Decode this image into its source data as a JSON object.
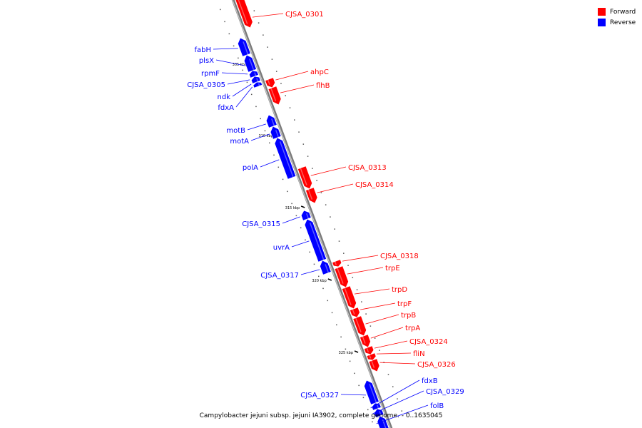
{
  "legend": [
    {
      "label": "Forward",
      "color": "#ff0000"
    },
    {
      "label": "Reverse",
      "color": "#0000ff"
    }
  ],
  "caption": "Campylobacter jejuni subsp. jejuni IA3902, complete genome. - 0..1635045",
  "colors": {
    "forward": "#ff0000",
    "reverse": "#0000ff",
    "backbone": "#999999"
  },
  "scale_labels": [
    "305 kbp",
    "310 kbp",
    "315 kbp",
    "320 kbp",
    "325 kbp"
  ],
  "genes": [
    {
      "name": "CJSA_0301",
      "strand": "forward"
    },
    {
      "name": "fabH",
      "strand": "reverse"
    },
    {
      "name": "plsX",
      "strand": "reverse"
    },
    {
      "name": "rpmF",
      "strand": "reverse"
    },
    {
      "name": "CJSA_0305",
      "strand": "reverse"
    },
    {
      "name": "ndk",
      "strand": "reverse"
    },
    {
      "name": "fdxA",
      "strand": "reverse"
    },
    {
      "name": "ahpC",
      "strand": "forward"
    },
    {
      "name": "flhB",
      "strand": "forward"
    },
    {
      "name": "motB",
      "strand": "reverse"
    },
    {
      "name": "motA",
      "strand": "reverse"
    },
    {
      "name": "polA",
      "strand": "reverse"
    },
    {
      "name": "CJSA_0313",
      "strand": "forward"
    },
    {
      "name": "CJSA_0314",
      "strand": "forward"
    },
    {
      "name": "CJSA_0315",
      "strand": "reverse"
    },
    {
      "name": "uvrA",
      "strand": "reverse"
    },
    {
      "name": "CJSA_0317",
      "strand": "reverse"
    },
    {
      "name": "CJSA_0318",
      "strand": "forward"
    },
    {
      "name": "trpE",
      "strand": "forward"
    },
    {
      "name": "trpD",
      "strand": "forward"
    },
    {
      "name": "trpF",
      "strand": "forward"
    },
    {
      "name": "trpB",
      "strand": "forward"
    },
    {
      "name": "trpA",
      "strand": "forward"
    },
    {
      "name": "CJSA_0324",
      "strand": "forward"
    },
    {
      "name": "fliN",
      "strand": "forward"
    },
    {
      "name": "CJSA_0326",
      "strand": "forward"
    },
    {
      "name": "CJSA_0327",
      "strand": "reverse"
    },
    {
      "name": "fdxB",
      "strand": "reverse"
    },
    {
      "name": "CJSA_0329",
      "strand": "reverse"
    },
    {
      "name": "folB",
      "strand": "reverse"
    }
  ]
}
